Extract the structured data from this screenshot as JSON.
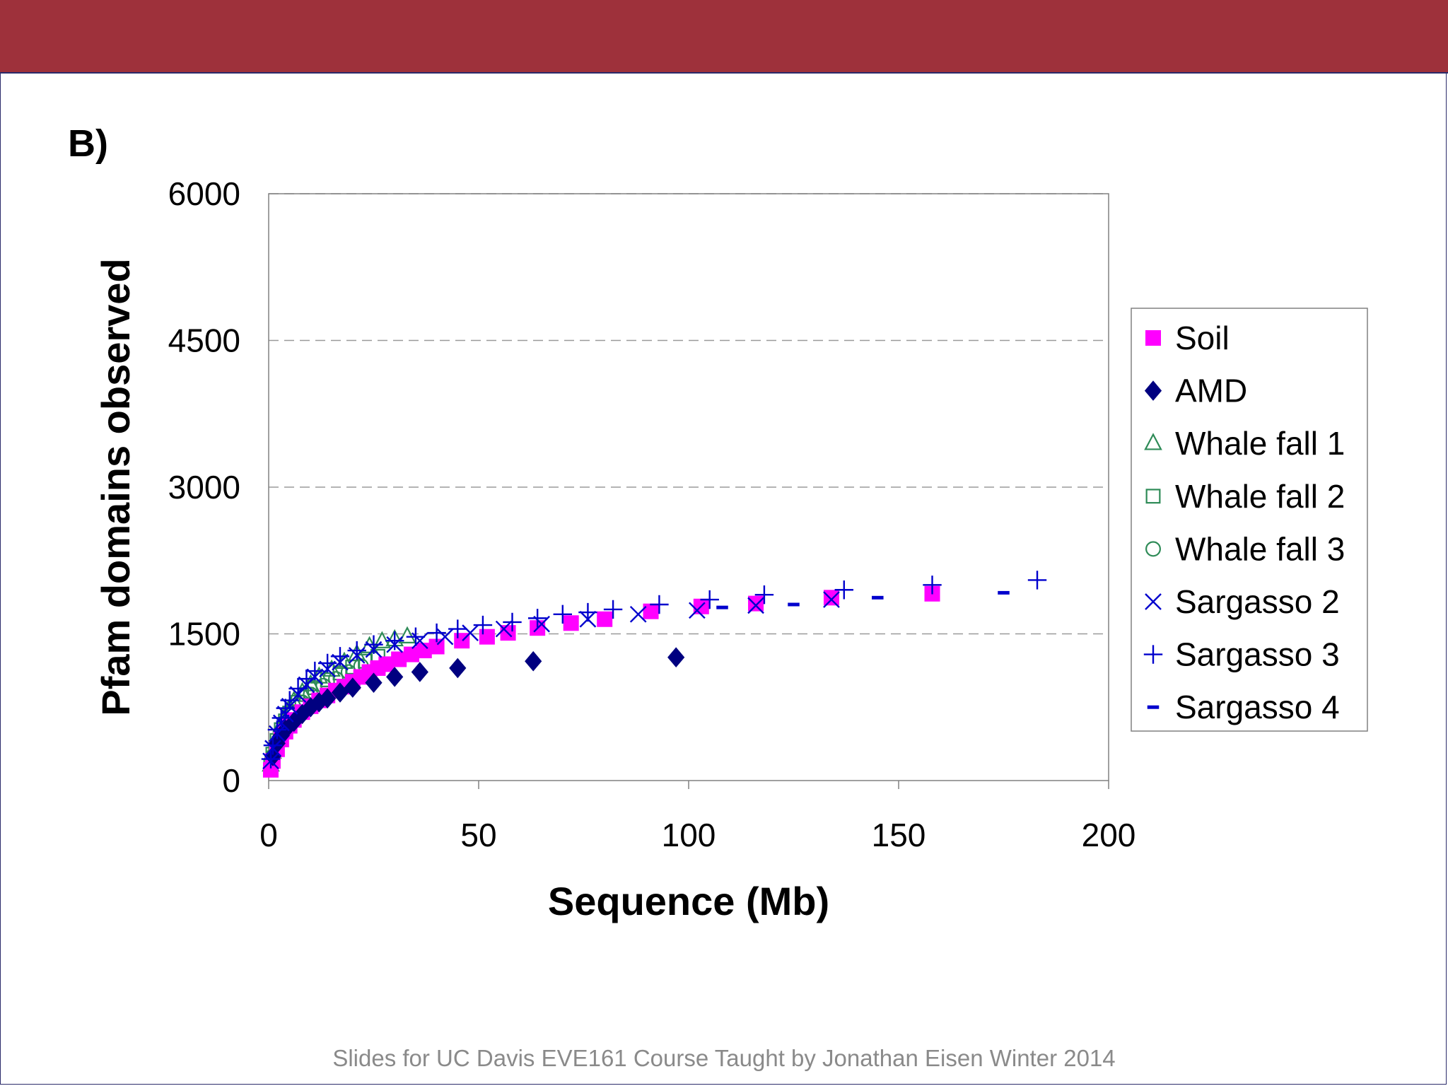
{
  "slide": {
    "panel_label": "B)",
    "footer": "Slides for UC Davis EVE161 Course Taught by Jonathan Eisen Winter 2014",
    "banner_color": "#9e313b"
  },
  "chart_data": {
    "type": "scatter",
    "xlabel": "Sequence (Mb)",
    "ylabel": "Pfam domains observed",
    "xlim": [
      0,
      200
    ],
    "ylim": [
      0,
      6000
    ],
    "xticks": [
      "0",
      "50",
      "100",
      "150",
      "200"
    ],
    "yticks": [
      "0",
      "1500",
      "3000",
      "4500",
      "6000"
    ],
    "grid": "horizontal dashed",
    "legend_position": "right",
    "series": [
      {
        "name": "Soil",
        "marker": "filled-square",
        "color": "#ff00ff",
        "points": [
          [
            0.5,
            110
          ],
          [
            1,
            200
          ],
          [
            2,
            320
          ],
          [
            3,
            420
          ],
          [
            4,
            500
          ],
          [
            5,
            560
          ],
          [
            6,
            620
          ],
          [
            8,
            700
          ],
          [
            10,
            760
          ],
          [
            12,
            820
          ],
          [
            14,
            870
          ],
          [
            16,
            920
          ],
          [
            18,
            960
          ],
          [
            20,
            1010
          ],
          [
            22,
            1060
          ],
          [
            24,
            1110
          ],
          [
            26,
            1150
          ],
          [
            28,
            1190
          ],
          [
            31,
            1240
          ],
          [
            34,
            1290
          ],
          [
            37,
            1330
          ],
          [
            40,
            1370
          ],
          [
            46,
            1430
          ],
          [
            52,
            1470
          ],
          [
            57,
            1510
          ],
          [
            64,
            1560
          ],
          [
            72,
            1610
          ],
          [
            80,
            1650
          ],
          [
            91,
            1730
          ],
          [
            103,
            1780
          ],
          [
            116,
            1810
          ],
          [
            134,
            1870
          ],
          [
            158,
            1910
          ]
        ]
      },
      {
        "name": "AMD",
        "marker": "filled-diamond",
        "color": "#000080",
        "points": [
          [
            1,
            250
          ],
          [
            2,
            380
          ],
          [
            3,
            460
          ],
          [
            4,
            520
          ],
          [
            6,
            600
          ],
          [
            8,
            680
          ],
          [
            10,
            750
          ],
          [
            12,
            800
          ],
          [
            14,
            840
          ],
          [
            17,
            900
          ],
          [
            20,
            950
          ],
          [
            25,
            1000
          ],
          [
            30,
            1060
          ],
          [
            36,
            1110
          ],
          [
            45,
            1150
          ],
          [
            63,
            1220
          ],
          [
            97,
            1260
          ]
        ]
      },
      {
        "name": "Whale fall 1",
        "marker": "open-triangle",
        "color": "#2e8b57",
        "points": [
          [
            0.5,
            160
          ],
          [
            1,
            290
          ],
          [
            2,
            440
          ],
          [
            3,
            560
          ],
          [
            4,
            660
          ],
          [
            5,
            740
          ],
          [
            6,
            810
          ],
          [
            8,
            900
          ],
          [
            10,
            980
          ],
          [
            12,
            1060
          ],
          [
            15,
            1130
          ],
          [
            18,
            1210
          ],
          [
            21,
            1290
          ],
          [
            24,
            1370
          ],
          [
            27,
            1420
          ],
          [
            30,
            1440
          ],
          [
            33,
            1470
          ]
        ]
      },
      {
        "name": "Whale fall 2",
        "marker": "open-square",
        "color": "#2e8b57",
        "points": [
          [
            0.5,
            150
          ],
          [
            1,
            270
          ],
          [
            2,
            410
          ],
          [
            3,
            520
          ],
          [
            4,
            610
          ],
          [
            5,
            690
          ],
          [
            7,
            800
          ],
          [
            9,
            880
          ],
          [
            11,
            950
          ],
          [
            14,
            1030
          ],
          [
            17,
            1100
          ],
          [
            20,
            1160
          ],
          [
            23,
            1220
          ],
          [
            26,
            1270
          ]
        ]
      },
      {
        "name": "Whale fall 3",
        "marker": "open-circle",
        "color": "#2e8b57",
        "points": [
          [
            0.5,
            140
          ],
          [
            1,
            250
          ],
          [
            2,
            380
          ],
          [
            3,
            490
          ],
          [
            4,
            580
          ],
          [
            6,
            700
          ],
          [
            8,
            800
          ],
          [
            10,
            880
          ],
          [
            13,
            970
          ],
          [
            16,
            1040
          ],
          [
            19,
            1110
          ],
          [
            22,
            1170
          ]
        ]
      },
      {
        "name": "Sargasso 2",
        "marker": "x",
        "color": "#0000cd",
        "points": [
          [
            0.5,
            200
          ],
          [
            1,
            330
          ],
          [
            2,
            480
          ],
          [
            3,
            590
          ],
          [
            4,
            680
          ],
          [
            5,
            760
          ],
          [
            7,
            880
          ],
          [
            9,
            980
          ],
          [
            11,
            1060
          ],
          [
            14,
            1140
          ],
          [
            17,
            1210
          ],
          [
            21,
            1280
          ],
          [
            25,
            1340
          ],
          [
            30,
            1390
          ],
          [
            36,
            1430
          ],
          [
            42,
            1470
          ],
          [
            48,
            1510
          ],
          [
            56,
            1550
          ],
          [
            65,
            1600
          ],
          [
            76,
            1650
          ],
          [
            88,
            1700
          ],
          [
            102,
            1740
          ],
          [
            116,
            1790
          ],
          [
            134,
            1850
          ]
        ]
      },
      {
        "name": "Sargasso 3",
        "marker": "plus",
        "color": "#0000cd",
        "points": [
          [
            0.5,
            220
          ],
          [
            1,
            360
          ],
          [
            2,
            520
          ],
          [
            3,
            640
          ],
          [
            4,
            740
          ],
          [
            5,
            820
          ],
          [
            7,
            940
          ],
          [
            9,
            1040
          ],
          [
            11,
            1120
          ],
          [
            14,
            1200
          ],
          [
            17,
            1270
          ],
          [
            21,
            1330
          ],
          [
            25,
            1390
          ],
          [
            30,
            1430
          ],
          [
            35,
            1470
          ],
          [
            40,
            1510
          ],
          [
            45,
            1550
          ],
          [
            51,
            1590
          ],
          [
            58,
            1620
          ],
          [
            64,
            1660
          ],
          [
            70,
            1700
          ],
          [
            76,
            1720
          ],
          [
            82,
            1750
          ],
          [
            93,
            1800
          ],
          [
            105,
            1850
          ],
          [
            118,
            1900
          ],
          [
            137,
            1950
          ],
          [
            158,
            2000
          ],
          [
            183,
            2050
          ]
        ]
      },
      {
        "name": "Sargasso 4",
        "marker": "dash",
        "color": "#0000cd",
        "points": [
          [
            108,
            1770
          ],
          [
            125,
            1800
          ],
          [
            145,
            1870
          ],
          [
            175,
            1920
          ]
        ]
      }
    ]
  }
}
